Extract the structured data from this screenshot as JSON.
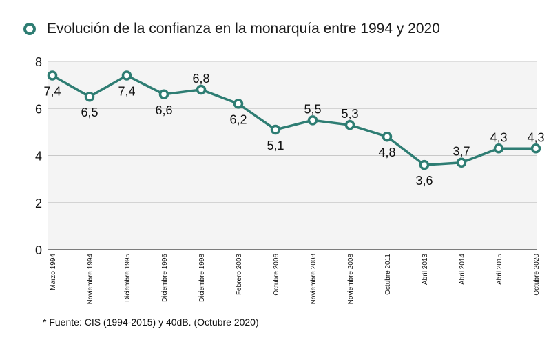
{
  "chart_data": {
    "type": "line",
    "title": "Evolución de la confianza en la monarquía entre 1994 y 2020",
    "xlabel": "",
    "ylabel": "",
    "categories": [
      "Marzo 1994",
      "Noviembre 1994",
      "Diciembre 1995",
      "Diciembre 1996",
      "Diciembre 1998",
      "Febrero 2003",
      "Octubre 2006",
      "Noviembre 2008",
      "Noviembre 2008",
      "Octubre 2011",
      "Abril 2013",
      "Abril 2014",
      "Abril 2015",
      "Octubre 2020"
    ],
    "series": [
      {
        "name": "Evolución de la confianza en la monarquía entre 1994 y 2020",
        "values": [
          7.4,
          6.5,
          7.4,
          6.6,
          6.8,
          6.2,
          5.1,
          5.5,
          5.3,
          4.8,
          3.6,
          3.7,
          4.3,
          4.3
        ],
        "labels": [
          "7,4",
          "6,5",
          "7,4",
          "6,6",
          "6,8",
          "6,2",
          "5,1",
          "5,5",
          "5,3",
          "4,8",
          "3,6",
          "3,7",
          "4,3",
          "4,3"
        ],
        "label_position": [
          "below",
          "below",
          "below",
          "below",
          "above",
          "below",
          "below",
          "above",
          "above",
          "below",
          "below",
          "above",
          "above",
          "above"
        ],
        "color": "#2e7d73"
      }
    ],
    "ylim": [
      0,
      8
    ],
    "yticks": [
      0,
      2,
      4,
      6,
      8
    ],
    "grid": true,
    "legend": "top-left"
  },
  "footnote": "* Fuente: CIS (1994-2015) y 40dB. (Octubre 2020)",
  "colors": {
    "line": "#2e7d73",
    "plot_background": "#f4f4f4",
    "gridline": "#c8c8c8"
  }
}
